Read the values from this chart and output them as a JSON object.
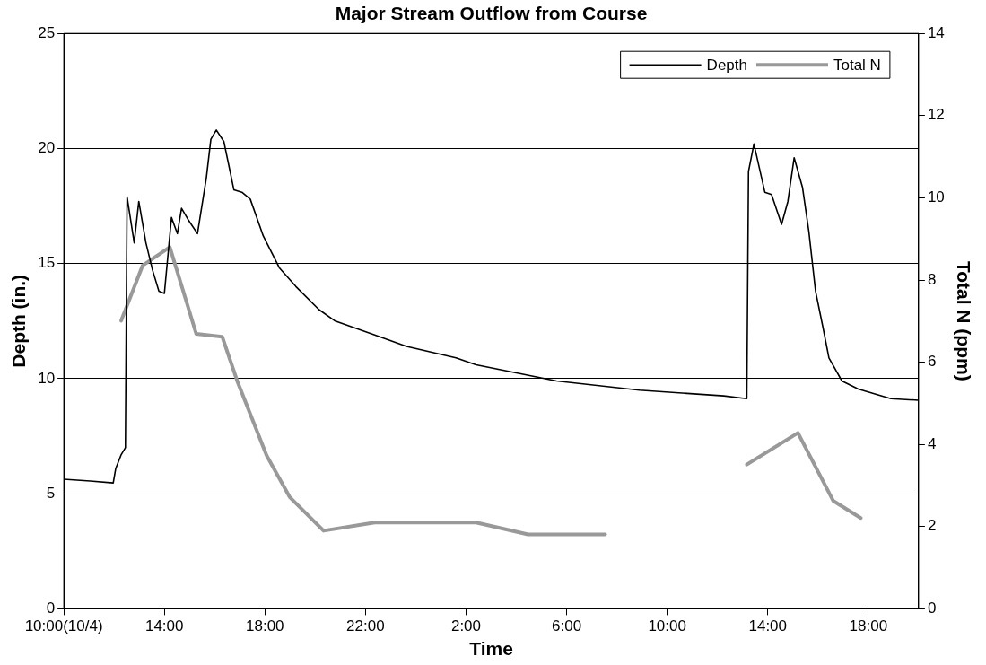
{
  "chart_data": {
    "type": "line",
    "title": "Major Stream Outflow from Course",
    "xlabel": "Time",
    "ylabel": "Depth (in.)",
    "y2label": "Total N (ppm)",
    "xlim": [
      "--10-04T10:00",
      "--10-05T20:00"
    ],
    "xticks": [
      {
        "value": "--10-04T10:00",
        "label": "10:00(10/4)"
      },
      {
        "value": "--10-04T14:00",
        "label": "14:00"
      },
      {
        "value": "--10-04T18:00",
        "label": "18:00"
      },
      {
        "value": "--10-04T22:00",
        "label": "22:00"
      },
      {
        "value": "--10-05T02:00",
        "label": "2:00"
      },
      {
        "value": "--10-05T06:00",
        "label": "6:00"
      },
      {
        "value": "--10-05T10:00",
        "label": "10:00"
      },
      {
        "value": "--10-05T14:00",
        "label": "14:00"
      },
      {
        "value": "--10-05T18:00",
        "label": "18:00"
      }
    ],
    "ylim": [
      0,
      25
    ],
    "yticks": [
      0,
      5,
      10,
      15,
      20,
      25
    ],
    "y2lim": [
      0,
      14
    ],
    "y2ticks": [
      0,
      2,
      4,
      6,
      8,
      10,
      12,
      14
    ],
    "grid": "y",
    "legend": "top right",
    "marker": "none",
    "series": [
      {
        "name": "Depth",
        "color": "#000000",
        "x": [
          "--10-04T10:00",
          "--10-04T11:03",
          "--10-04T11:58",
          "--10-04T12:04",
          "--10-04T12:17",
          "--10-04T12:27",
          "--10-04T12:31",
          "--10-04T12:48",
          "--10-04T12:59",
          "--10-04T13:16",
          "--10-04T13:32",
          "--10-04T13:47",
          "--10-04T14:00",
          "--10-04T14:17",
          "--10-04T14:31",
          "--10-04T14:41",
          "--10-04T14:57",
          "--10-04T15:19",
          "--10-04T15:40",
          "--10-04T15:51",
          "--10-04T16:04",
          "--10-04T16:22",
          "--10-04T16:46",
          "--10-04T17:05",
          "--10-04T17:25",
          "--10-04T17:56",
          "--10-04T18:35",
          "--10-04T19:14",
          "--10-04T20:09",
          "--10-04T20:48",
          "--10-04T22:22",
          "--10-04T23:38",
          "--10-05T01:36",
          "--10-05T02:24",
          "--10-05T05:36",
          "--10-05T08:54",
          "--10-05T12:15",
          "--10-05T13:10",
          "--10-05T13:14",
          "--10-05T13:27",
          "--10-05T13:53",
          "--10-05T14:09",
          "--10-05T14:33",
          "--10-05T14:48",
          "--10-05T15:03",
          "--10-05T15:23",
          "--10-05T15:38",
          "--10-05T15:54",
          "--10-05T16:12",
          "--10-05T16:26",
          "--10-05T16:57",
          "--10-05T17:36",
          "--10-05T18:54",
          "--10-05T20:00"
        ],
        "values": [
          5.63,
          5.55,
          5.47,
          6.1,
          6.7,
          7.0,
          17.9,
          15.9,
          17.7,
          15.9,
          14.7,
          13.8,
          13.7,
          17.0,
          16.3,
          17.4,
          16.9,
          16.3,
          18.7,
          20.4,
          20.8,
          20.3,
          18.2,
          18.1,
          17.8,
          16.2,
          14.8,
          14.0,
          13.0,
          12.5,
          11.9,
          11.4,
          10.9,
          10.6,
          9.9,
          9.5,
          9.25,
          9.13,
          19.0,
          20.2,
          18.1,
          18.0,
          16.7,
          17.7,
          19.6,
          18.3,
          16.4,
          13.8,
          12.2,
          10.9,
          9.9,
          9.55,
          9.13,
          9.06
        ]
      },
      {
        "name": "Total N",
        "color": "#999999",
        "axis": "y2",
        "x": [
          "--10-04T12:17",
          "--10-04T13:08",
          "--10-04T14:13",
          "--10-04T15:16",
          "--10-04T16:18",
          "--10-04T16:54",
          "--10-04T18:04",
          "--10-04T18:59",
          "--10-04T20:20",
          "--10-04T22:22",
          "--10-05T02:24",
          "--10-05T04:28",
          "--10-05T07:32",
          "--10-05T10:30",
          "--10-05T13:10",
          "--10-05T15:12",
          "--10-05T16:36",
          "--10-05T17:42"
        ],
        "values": [
          7.01,
          8.35,
          8.8,
          6.69,
          6.62,
          5.54,
          3.73,
          2.72,
          1.9,
          2.1,
          2.1,
          1.81,
          1.81,
          null,
          3.51,
          4.28,
          2.63,
          2.21
        ]
      }
    ]
  }
}
